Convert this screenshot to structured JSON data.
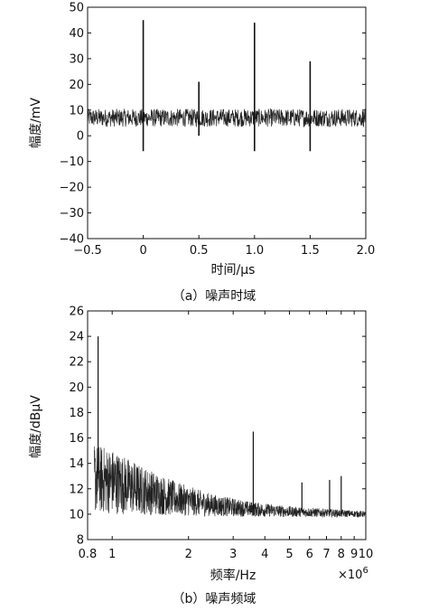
{
  "chart_data": [
    {
      "type": "line",
      "title": "",
      "caption": "（a）噪声时域",
      "xlabel": "时间/μs",
      "ylabel": "幅度/mV",
      "xlim": [
        -0.5,
        2.0
      ],
      "ylim": [
        -40,
        50
      ],
      "xticks": [
        -0.5,
        0,
        0.5,
        1.0,
        1.5,
        2.0
      ],
      "xtick_labels": [
        "−0.5",
        "0",
        "0.5",
        "1.0",
        "1.5",
        "2.0"
      ],
      "yticks": [
        -40,
        -30,
        -20,
        -10,
        0,
        10,
        20,
        30,
        40,
        50
      ],
      "ytick_labels": [
        "−40",
        "−30",
        "−20",
        "−10",
        "0",
        "10",
        "20",
        "30",
        "40",
        "50"
      ],
      "grid": false,
      "noise": {
        "x_start": -0.5,
        "x_end": 2.0,
        "mean": 7,
        "amplitude": 3.5
      },
      "spikes": [
        {
          "x": 0.0,
          "y_max": 45,
          "y_min": -6
        },
        {
          "x": 0.5,
          "y_max": 21,
          "y_min": 0
        },
        {
          "x": 1.0,
          "y_max": 44,
          "y_min": -6
        },
        {
          "x": 1.5,
          "y_max": 29,
          "y_min": -6
        }
      ]
    },
    {
      "type": "line",
      "title": "",
      "caption": "（b）噪声频域",
      "xlabel": "频率/Hz",
      "x_multiplier": "×10",
      "x_multiplier_exp": "6",
      "ylabel": "幅度/dBμV",
      "x_scale": "log",
      "xlim": [
        0.8,
        10
      ],
      "ylim": [
        8,
        26
      ],
      "xticks": [
        0.8,
        1,
        2,
        3,
        4,
        5,
        6,
        7,
        8,
        9,
        10
      ],
      "xtick_labels": [
        "0.8",
        "1",
        "2",
        "3",
        "4",
        "5",
        "6",
        "7",
        "8",
        "9",
        "10"
      ],
      "yticks": [
        8,
        10,
        12,
        14,
        16,
        18,
        20,
        22,
        24,
        26
      ],
      "ytick_labels": [
        "8",
        "10",
        "12",
        "14",
        "16",
        "18",
        "20",
        "22",
        "24",
        "26"
      ],
      "grid": false,
      "envelope": [
        [
          0.85,
          12.8
        ],
        [
          1.0,
          12.6
        ],
        [
          1.3,
          11.9
        ],
        [
          1.8,
          11.2
        ],
        [
          2.5,
          10.7
        ],
        [
          3.5,
          10.4
        ],
        [
          5.0,
          10.2
        ],
        [
          7.0,
          10.1
        ],
        [
          10.0,
          10.0
        ]
      ],
      "spikes": [
        {
          "x": 0.88,
          "y": 24.0
        },
        {
          "x": 3.6,
          "y": 16.5
        },
        {
          "x": 5.6,
          "y": 12.5
        },
        {
          "x": 7.2,
          "y": 12.7
        },
        {
          "x": 8.0,
          "y": 13.0
        }
      ]
    }
  ]
}
